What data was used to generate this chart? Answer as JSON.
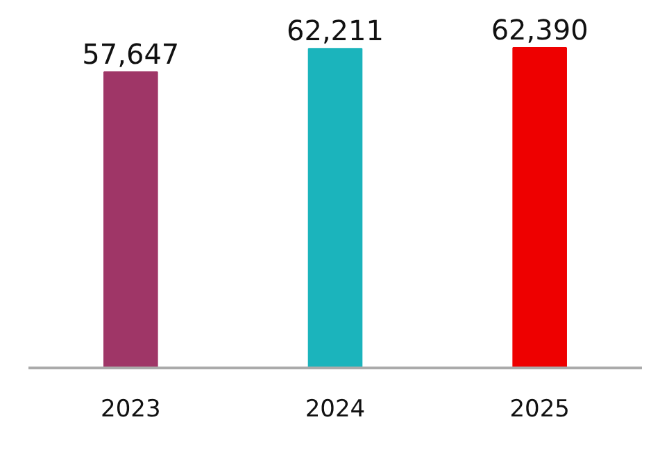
{
  "chart_data": {
    "type": "bar",
    "categories": [
      "2023",
      "2024",
      "2025"
    ],
    "values": [
      57647,
      62211,
      62390
    ],
    "value_labels": [
      "57,647",
      "62,211",
      "62,390"
    ],
    "colors": [
      "#9f3667",
      "#1bb4bc",
      "#ee0000"
    ],
    "grid": false
  }
}
